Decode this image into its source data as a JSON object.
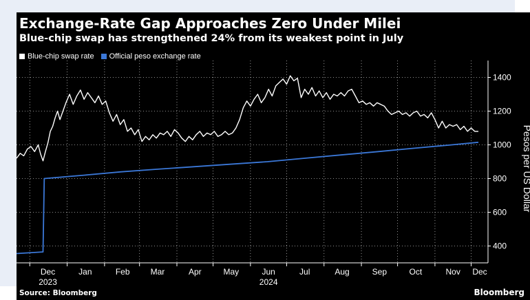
{
  "colors": {
    "background": "#000000",
    "swap_line": "#ffffff",
    "official_line": "#3b78d8",
    "grid": "#ffffff"
  },
  "footer": {
    "source": "Source: Bloomberg",
    "brand": "Bloomberg"
  },
  "chart_data": {
    "type": "line",
    "title": "Exchange-Rate Gap Approaches Zero Under Milei",
    "subtitle": "Blue-chip swap has strengthened 24% from its weakest point in July",
    "ylabel": "Pesos per US Dollar",
    "xlabel": "",
    "ylim": [
      300,
      1500
    ],
    "yticks": [
      400,
      600,
      800,
      1000,
      1200,
      1400
    ],
    "grid": true,
    "grid_style": "dotted",
    "legend_position": "top-left",
    "x_tick_labels": [
      {
        "date": "2023-12-01",
        "label": "Dec",
        "sublabel": "2023"
      },
      {
        "date": "2024-01-01",
        "label": "Jan",
        "sublabel": ""
      },
      {
        "date": "2024-02-01",
        "label": "Feb",
        "sublabel": ""
      },
      {
        "date": "2024-03-01",
        "label": "Mar",
        "sublabel": ""
      },
      {
        "date": "2024-04-01",
        "label": "Apr",
        "sublabel": ""
      },
      {
        "date": "2024-05-01",
        "label": "May",
        "sublabel": ""
      },
      {
        "date": "2024-06-01",
        "label": "Jun",
        "sublabel": "2024"
      },
      {
        "date": "2024-07-01",
        "label": "Jul",
        "sublabel": ""
      },
      {
        "date": "2024-08-01",
        "label": "Aug",
        "sublabel": ""
      },
      {
        "date": "2024-09-01",
        "label": "Sep",
        "sublabel": ""
      },
      {
        "date": "2024-10-01",
        "label": "Oct",
        "sublabel": ""
      },
      {
        "date": "2024-11-01",
        "label": "Nov",
        "sublabel": ""
      },
      {
        "date": "2024-12-01",
        "label": "Dec",
        "sublabel": ""
      }
    ],
    "series": [
      {
        "name": "Blue-chip swap rate",
        "color": "#ffffff",
        "points": [
          [
            "2023-11-20",
            920
          ],
          [
            "2023-11-23",
            950
          ],
          [
            "2023-11-26",
            935
          ],
          [
            "2023-11-29",
            975
          ],
          [
            "2023-12-02",
            990
          ],
          [
            "2023-12-05",
            960
          ],
          [
            "2023-12-08",
            1000
          ],
          [
            "2023-12-10",
            945
          ],
          [
            "2023-12-12",
            905
          ],
          [
            "2023-12-14",
            960
          ],
          [
            "2023-12-16",
            1010
          ],
          [
            "2023-12-18",
            1080
          ],
          [
            "2023-12-20",
            1110
          ],
          [
            "2023-12-22",
            1160
          ],
          [
            "2023-12-24",
            1200
          ],
          [
            "2023-12-26",
            1150
          ],
          [
            "2023-12-28",
            1190
          ],
          [
            "2023-12-31",
            1250
          ],
          [
            "2024-01-03",
            1300
          ],
          [
            "2024-01-06",
            1240
          ],
          [
            "2024-01-09",
            1290
          ],
          [
            "2024-01-12",
            1325
          ],
          [
            "2024-01-15",
            1270
          ],
          [
            "2024-01-18",
            1310
          ],
          [
            "2024-01-21",
            1280
          ],
          [
            "2024-01-24",
            1250
          ],
          [
            "2024-01-27",
            1290
          ],
          [
            "2024-01-30",
            1240
          ],
          [
            "2024-02-02",
            1260
          ],
          [
            "2024-02-05",
            1190
          ],
          [
            "2024-02-08",
            1140
          ],
          [
            "2024-02-11",
            1180
          ],
          [
            "2024-02-14",
            1120
          ],
          [
            "2024-02-17",
            1150
          ],
          [
            "2024-02-20",
            1080
          ],
          [
            "2024-02-23",
            1100
          ],
          [
            "2024-02-26",
            1060
          ],
          [
            "2024-02-29",
            1090
          ],
          [
            "2024-03-03",
            1020
          ],
          [
            "2024-03-06",
            1050
          ],
          [
            "2024-03-09",
            1030
          ],
          [
            "2024-03-12",
            1060
          ],
          [
            "2024-03-15",
            1040
          ],
          [
            "2024-03-18",
            1070
          ],
          [
            "2024-03-21",
            1060
          ],
          [
            "2024-03-24",
            1080
          ],
          [
            "2024-03-27",
            1050
          ],
          [
            "2024-03-30",
            1090
          ],
          [
            "2024-04-02",
            1070
          ],
          [
            "2024-04-05",
            1040
          ],
          [
            "2024-04-08",
            1020
          ],
          [
            "2024-04-11",
            1050
          ],
          [
            "2024-04-14",
            1030
          ],
          [
            "2024-04-17",
            1060
          ],
          [
            "2024-04-20",
            1080
          ],
          [
            "2024-04-23",
            1050
          ],
          [
            "2024-04-26",
            1070
          ],
          [
            "2024-04-29",
            1060
          ],
          [
            "2024-05-02",
            1080
          ],
          [
            "2024-05-05",
            1050
          ],
          [
            "2024-05-08",
            1060
          ],
          [
            "2024-05-11",
            1080
          ],
          [
            "2024-05-14",
            1060
          ],
          [
            "2024-05-17",
            1070
          ],
          [
            "2024-05-20",
            1100
          ],
          [
            "2024-05-23",
            1150
          ],
          [
            "2024-05-26",
            1220
          ],
          [
            "2024-05-29",
            1260
          ],
          [
            "2024-06-01",
            1230
          ],
          [
            "2024-06-04",
            1270
          ],
          [
            "2024-06-07",
            1300
          ],
          [
            "2024-06-10",
            1250
          ],
          [
            "2024-06-13",
            1280
          ],
          [
            "2024-06-16",
            1330
          ],
          [
            "2024-06-19",
            1290
          ],
          [
            "2024-06-22",
            1350
          ],
          [
            "2024-06-25",
            1370
          ],
          [
            "2024-06-28",
            1390
          ],
          [
            "2024-07-01",
            1360
          ],
          [
            "2024-07-04",
            1410
          ],
          [
            "2024-07-07",
            1380
          ],
          [
            "2024-07-10",
            1395
          ],
          [
            "2024-07-13",
            1280
          ],
          [
            "2024-07-16",
            1330
          ],
          [
            "2024-07-19",
            1300
          ],
          [
            "2024-07-22",
            1340
          ],
          [
            "2024-07-25",
            1290
          ],
          [
            "2024-07-28",
            1320
          ],
          [
            "2024-07-31",
            1280
          ],
          [
            "2024-08-03",
            1310
          ],
          [
            "2024-08-06",
            1270
          ],
          [
            "2024-08-09",
            1300
          ],
          [
            "2024-08-12",
            1290
          ],
          [
            "2024-08-15",
            1310
          ],
          [
            "2024-08-18",
            1290
          ],
          [
            "2024-08-21",
            1320
          ],
          [
            "2024-08-24",
            1330
          ],
          [
            "2024-08-27",
            1290
          ],
          [
            "2024-08-30",
            1250
          ],
          [
            "2024-09-02",
            1260
          ],
          [
            "2024-09-05",
            1240
          ],
          [
            "2024-09-08",
            1250
          ],
          [
            "2024-09-11",
            1230
          ],
          [
            "2024-09-14",
            1250
          ],
          [
            "2024-09-17",
            1240
          ],
          [
            "2024-09-20",
            1230
          ],
          [
            "2024-09-23",
            1200
          ],
          [
            "2024-09-26",
            1180
          ],
          [
            "2024-09-29",
            1190
          ],
          [
            "2024-10-02",
            1200
          ],
          [
            "2024-10-05",
            1180
          ],
          [
            "2024-10-08",
            1190
          ],
          [
            "2024-10-11",
            1170
          ],
          [
            "2024-10-14",
            1190
          ],
          [
            "2024-10-17",
            1200
          ],
          [
            "2024-10-20",
            1170
          ],
          [
            "2024-10-23",
            1180
          ],
          [
            "2024-10-26",
            1160
          ],
          [
            "2024-10-29",
            1190
          ],
          [
            "2024-11-01",
            1150
          ],
          [
            "2024-11-04",
            1100
          ],
          [
            "2024-11-07",
            1140
          ],
          [
            "2024-11-10",
            1100
          ],
          [
            "2024-11-13",
            1120
          ],
          [
            "2024-11-16",
            1110
          ],
          [
            "2024-11-19",
            1120
          ],
          [
            "2024-11-22",
            1090
          ],
          [
            "2024-11-25",
            1110
          ],
          [
            "2024-11-28",
            1080
          ],
          [
            "2024-12-01",
            1100
          ],
          [
            "2024-12-04",
            1080
          ],
          [
            "2024-12-07",
            1080
          ]
        ]
      },
      {
        "name": "Official peso exchange rate",
        "color": "#3b78d8",
        "points": [
          [
            "2023-11-20",
            355
          ],
          [
            "2023-12-12",
            365
          ],
          [
            "2023-12-13",
            800
          ],
          [
            "2024-01-15",
            820
          ],
          [
            "2024-02-15",
            840
          ],
          [
            "2024-03-15",
            855
          ],
          [
            "2024-04-15",
            870
          ],
          [
            "2024-05-15",
            885
          ],
          [
            "2024-06-15",
            900
          ],
          [
            "2024-07-15",
            920
          ],
          [
            "2024-08-15",
            940
          ],
          [
            "2024-09-15",
            960
          ],
          [
            "2024-10-15",
            980
          ],
          [
            "2024-11-15",
            1000
          ],
          [
            "2024-12-07",
            1015
          ]
        ]
      }
    ]
  }
}
